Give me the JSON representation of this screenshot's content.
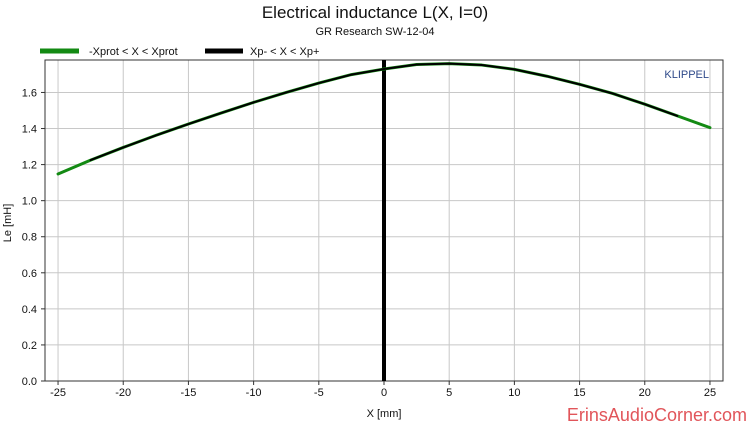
{
  "chart_data": {
    "type": "line",
    "title": "Electrical inductance L(X, I=0)",
    "subtitle": "GR Research SW-12-04",
    "xlabel": "X [mm]",
    "ylabel": "Le [mH]",
    "xlim": [
      -26,
      26
    ],
    "ylim": [
      0,
      1.78
    ],
    "x_ticks": [
      -25,
      -20,
      -15,
      -10,
      -5,
      0,
      5,
      10,
      15,
      20,
      25
    ],
    "y_ticks": [
      0.0,
      0.2,
      0.4,
      0.6,
      0.8,
      1.0,
      1.2,
      1.4,
      1.6
    ],
    "x_tick_labels": [
      "-25",
      "-20",
      "-15",
      "-10",
      "-5",
      "0",
      "5",
      "10",
      "15",
      "20",
      "25"
    ],
    "y_tick_labels": [
      "0.0",
      "0.2",
      "0.4",
      "0.6",
      "0.8",
      "1.0",
      "1.2",
      "1.4",
      "1.6"
    ],
    "grid": true,
    "legend_position": "top-left",
    "watermark": "KLIPPEL",
    "credit": "ErinsAudioCorner.com",
    "colors": {
      "series_1": "#138a13",
      "series_2": "#000000",
      "grid": "#c8c8c8",
      "axis": "#333333",
      "klippel": "#2f4a8a",
      "credit": "#e1555a",
      "zero_line": "#000000"
    },
    "series": [
      {
        "name": "-Xprot < X < Xprot",
        "color": "#138a13",
        "x": [
          -25,
          -22.5,
          -20,
          -17.5,
          -15,
          -12.5,
          -10,
          -7.5,
          -5,
          -2.5,
          0,
          2.5,
          5,
          7.5,
          10,
          12.5,
          15,
          17.5,
          20,
          22.5,
          25
        ],
        "y": [
          1.148,
          1.225,
          1.295,
          1.362,
          1.425,
          1.486,
          1.545,
          1.6,
          1.652,
          1.699,
          1.73,
          1.755,
          1.76,
          1.752,
          1.728,
          1.69,
          1.645,
          1.595,
          1.535,
          1.47,
          1.405
        ]
      },
      {
        "name": "Xp- < X < Xp+",
        "color": "#000000",
        "x": [
          -22.5,
          -20,
          -17.5,
          -15,
          -12.5,
          -10,
          -7.5,
          -5,
          -2.5,
          0,
          2.5,
          5,
          7.5,
          10,
          12.5,
          15,
          17.5,
          20,
          22.5
        ],
        "y": [
          1.225,
          1.295,
          1.362,
          1.425,
          1.486,
          1.545,
          1.6,
          1.652,
          1.699,
          1.73,
          1.755,
          1.76,
          1.752,
          1.728,
          1.69,
          1.645,
          1.595,
          1.535,
          1.47
        ]
      }
    ],
    "rest_position_x": 0
  }
}
